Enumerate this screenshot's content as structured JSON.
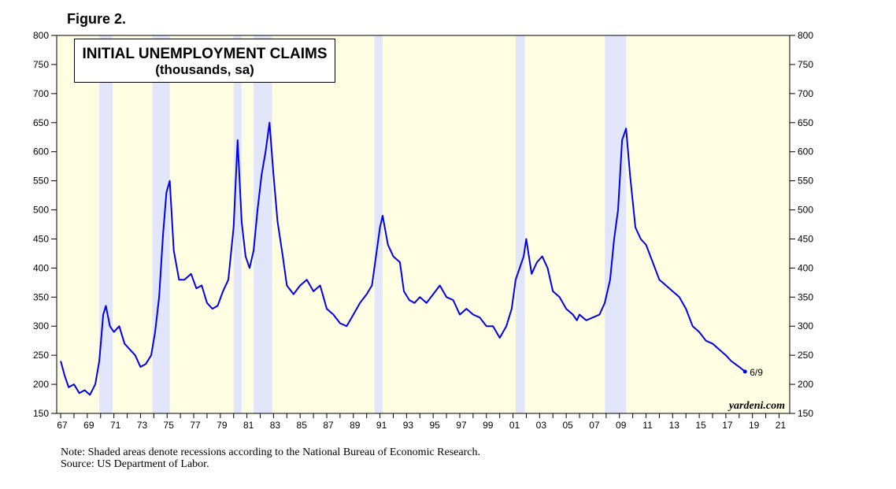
{
  "figure_label": "Figure 2.",
  "note_line": "Note: Shaded areas denote recessions according to the National Bureau of Economic Research.",
  "source_line": "Source: US Department of Labor.",
  "chart_data": {
    "type": "line",
    "title": "INITIAL UNEMPLOYMENT CLAIMS",
    "subtitle": "(thousands, sa)",
    "xlim": [
      1966.7,
      2021.8
    ],
    "ylim": [
      150,
      800
    ],
    "yticks": [
      150,
      200,
      250,
      300,
      350,
      400,
      450,
      500,
      550,
      600,
      650,
      700,
      750,
      800
    ],
    "xtick_labels": [
      "67",
      "69",
      "71",
      "73",
      "75",
      "77",
      "79",
      "81",
      "83",
      "85",
      "87",
      "89",
      "91",
      "93",
      "95",
      "97",
      "99",
      "01",
      "03",
      "05",
      "07",
      "09",
      "11",
      "13",
      "15",
      "17",
      "19",
      "21"
    ],
    "xtick_years": [
      1967,
      1969,
      1971,
      1973,
      1975,
      1977,
      1979,
      1981,
      1983,
      1985,
      1987,
      1989,
      1991,
      1993,
      1995,
      1997,
      1999,
      2001,
      2003,
      2005,
      2007,
      2009,
      2011,
      2013,
      2015,
      2017,
      2019,
      2021
    ],
    "recessions": [
      [
        1969.9,
        1970.9
      ],
      [
        1973.9,
        1975.2
      ],
      [
        1980.0,
        1980.6
      ],
      [
        1981.5,
        1982.9
      ],
      [
        1990.6,
        1991.2
      ],
      [
        2001.2,
        2001.9
      ],
      [
        2007.9,
        2009.5
      ]
    ],
    "background_color": "#fffde2",
    "recession_color": "#e2e6fb",
    "line_color": "#0000ee",
    "end_label": "6/9",
    "watermark": "yardeni.com",
    "series": [
      {
        "x": [
          1967.0,
          1967.3,
          1967.6,
          1968.0,
          1968.4,
          1968.8,
          1969.2,
          1969.6,
          1969.9,
          1970.2,
          1970.4,
          1970.7,
          1971.0,
          1971.4,
          1971.8,
          1972.2,
          1972.6,
          1973.0,
          1973.4,
          1973.8,
          1974.1,
          1974.4,
          1974.7,
          1974.95,
          1975.2,
          1975.5,
          1975.9,
          1976.3,
          1976.8,
          1977.2,
          1977.6,
          1978.0,
          1978.4,
          1978.8,
          1979.2,
          1979.6,
          1980.0,
          1980.3,
          1980.6,
          1980.9,
          1981.2,
          1981.5,
          1981.8,
          1982.1,
          1982.4,
          1982.7,
          1983.0,
          1983.3,
          1983.7,
          1984.0,
          1984.5,
          1985.0,
          1985.5,
          1986.0,
          1986.5,
          1987.0,
          1987.5,
          1988.0,
          1988.5,
          1989.0,
          1989.5,
          1990.0,
          1990.4,
          1990.7,
          1991.0,
          1991.2,
          1991.6,
          1992.0,
          1992.5,
          1992.8,
          1993.2,
          1993.6,
          1994.0,
          1994.5,
          1995.0,
          1995.5,
          1996.0,
          1996.5,
          1997.0,
          1997.5,
          1998.0,
          1998.5,
          1999.0,
          1999.5,
          2000.0,
          2000.5,
          2000.9,
          2001.2,
          2001.5,
          2001.8,
          2002.0,
          2002.4,
          2002.8,
          2003.2,
          2003.6,
          2004.0,
          2004.5,
          2005.0,
          2005.5,
          2005.8,
          2006.0,
          2006.5,
          2007.0,
          2007.5,
          2007.9,
          2008.3,
          2008.6,
          2008.9,
          2009.2,
          2009.5,
          2009.8,
          2010.2,
          2010.6,
          2011.0,
          2011.5,
          2012.0,
          2012.5,
          2013.0,
          2013.5,
          2014.0,
          2014.5,
          2015.0,
          2015.5,
          2016.0,
          2016.5,
          2017.0,
          2017.4,
          2017.7,
          2018.0,
          2018.44
        ],
        "y": [
          240,
          215,
          195,
          200,
          185,
          190,
          182,
          200,
          240,
          320,
          335,
          300,
          290,
          300,
          270,
          260,
          250,
          230,
          235,
          250,
          290,
          350,
          460,
          530,
          550,
          430,
          380,
          380,
          390,
          365,
          370,
          340,
          330,
          335,
          360,
          380,
          470,
          620,
          480,
          420,
          400,
          430,
          500,
          560,
          600,
          650,
          560,
          480,
          420,
          370,
          355,
          370,
          380,
          360,
          370,
          330,
          320,
          305,
          300,
          320,
          340,
          355,
          370,
          420,
          470,
          490,
          440,
          420,
          410,
          360,
          345,
          340,
          350,
          340,
          355,
          370,
          350,
          345,
          320,
          330,
          320,
          315,
          300,
          300,
          280,
          300,
          330,
          380,
          400,
          420,
          450,
          390,
          410,
          420,
          400,
          360,
          350,
          330,
          320,
          310,
          320,
          310,
          315,
          320,
          340,
          380,
          450,
          500,
          620,
          640,
          560,
          470,
          450,
          440,
          410,
          380,
          370,
          360,
          350,
          330,
          300,
          290,
          275,
          270,
          260,
          250,
          240,
          235,
          230,
          222
        ]
      }
    ]
  }
}
